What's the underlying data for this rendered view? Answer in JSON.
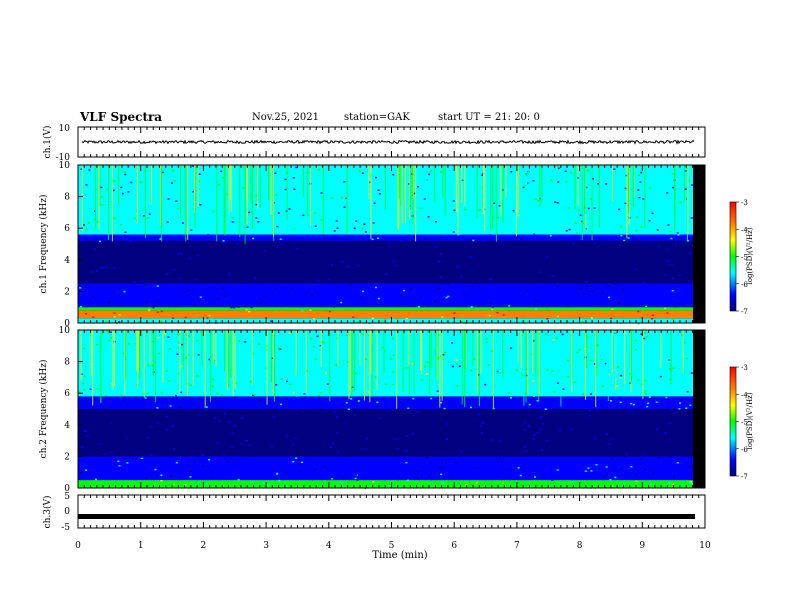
{
  "header": {
    "title": "VLF Spectra",
    "date": "Nov.25, 2021",
    "station": "station=GAK",
    "start": "start  UT  =   21: 20: 0"
  },
  "colorbar": {
    "label": "log(PSD)(V²/Hz)",
    "ticks": [
      "-3",
      "-4",
      "-5",
      "-6",
      "-7"
    ],
    "colors": [
      "#ff0000",
      "#ff8000",
      "#ffff00",
      "#00ff00",
      "#00ffff",
      "#0000ff",
      "#000080"
    ]
  },
  "chart_data": [
    {
      "type": "line",
      "panel": "ch1-waveform",
      "ylabel": "ch.1(V)",
      "ylim": [
        -10,
        10
      ],
      "yticks": [
        "10",
        "-10"
      ],
      "x": [
        0,
        10
      ],
      "description_values": "noisy waveform centered near 0 V, amplitude about ±1 V"
    },
    {
      "type": "heatmap",
      "panel": "ch1-spectrogram",
      "ylabel": "ch.1 Frequency (kHz)",
      "ylim": [
        0,
        10
      ],
      "yticks": [
        "0",
        "2",
        "4",
        "6",
        "8",
        "10"
      ],
      "xlim": [
        0,
        10
      ],
      "zlim": [
        -7,
        -3
      ],
      "bands": [
        {
          "fmin": 0,
          "fmax": 0.3,
          "level": -5.5
        },
        {
          "fmin": 0.3,
          "fmax": 0.8,
          "level": -3.5
        },
        {
          "fmin": 0.8,
          "fmax": 1.0,
          "level": -4.8
        },
        {
          "fmin": 1.0,
          "fmax": 2.5,
          "level": -6.6
        },
        {
          "fmin": 2.5,
          "fmax": 5.2,
          "level": -7
        },
        {
          "fmin": 5.2,
          "fmax": 5.6,
          "level": -6.2
        },
        {
          "fmin": 5.6,
          "fmax": 10,
          "level": -5.8
        }
      ]
    },
    {
      "type": "heatmap",
      "panel": "ch2-spectrogram",
      "ylabel": "ch.2 Frequency (kHz)",
      "ylim": [
        0,
        10
      ],
      "yticks": [
        "0",
        "2",
        "4",
        "6",
        "8",
        "10"
      ],
      "xlim": [
        0,
        10
      ],
      "zlim": [
        -7,
        -3
      ],
      "bands": [
        {
          "fmin": 0,
          "fmax": 0.5,
          "level": -5.2
        },
        {
          "fmin": 0.5,
          "fmax": 2.0,
          "level": -6.3
        },
        {
          "fmin": 2.0,
          "fmax": 5.0,
          "level": -6.9
        },
        {
          "fmin": 5.0,
          "fmax": 5.8,
          "level": -6.1
        },
        {
          "fmin": 5.8,
          "fmax": 10,
          "level": -5.4
        }
      ]
    },
    {
      "type": "line",
      "panel": "ch3-waveform",
      "ylabel": "ch.3(V)",
      "ylim": [
        -5,
        5
      ],
      "yticks": [
        "5",
        "0",
        "-5"
      ],
      "x": [
        0,
        10
      ],
      "y": [
        -1.5,
        -1.5
      ]
    }
  ],
  "xaxis": {
    "label": "Time  (min)",
    "ticks": [
      "0",
      "1",
      "2",
      "3",
      "4",
      "5",
      "6",
      "7",
      "8",
      "9",
      "10"
    ],
    "xlim": [
      0,
      10
    ]
  }
}
